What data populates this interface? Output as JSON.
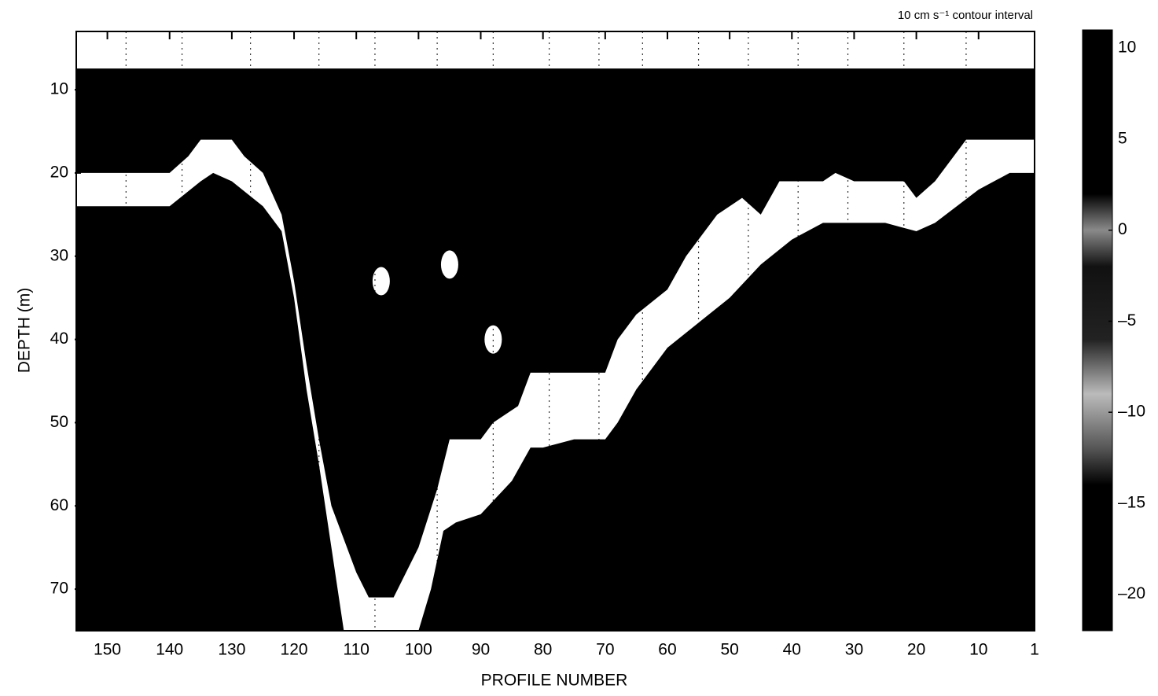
{
  "chart_data": {
    "type": "section",
    "annotation": "10 cm s⁻¹ contour interval",
    "xlabel": "PROFILE NUMBER",
    "ylabel": "DEPTH  (m)",
    "xlim": [
      155,
      1
    ],
    "xticks": [
      150,
      140,
      130,
      120,
      110,
      100,
      90,
      80,
      70,
      60,
      50,
      40,
      30,
      20,
      10,
      1
    ],
    "ylim": [
      75,
      3
    ],
    "yticks": [
      10,
      20,
      30,
      40,
      50,
      60,
      70
    ],
    "surface_depth": 7.5,
    "data_bottom": {
      "x": [
        155,
        140,
        137,
        135,
        130,
        128,
        125,
        122,
        120,
        118,
        116,
        114,
        110,
        108,
        104,
        100,
        97,
        95,
        90,
        88,
        84,
        82,
        70,
        68,
        65,
        60,
        57,
        55,
        52,
        48,
        45,
        42,
        35,
        33,
        30,
        22,
        20,
        17,
        15,
        12,
        1
      ],
      "values": [
        20,
        20,
        18,
        16,
        16,
        18,
        20,
        25,
        33,
        43,
        52,
        60,
        68,
        71,
        71,
        65,
        58,
        52,
        52,
        50,
        48,
        44,
        44,
        40,
        37,
        34,
        30,
        28,
        25,
        23,
        25,
        21,
        21,
        20,
        21,
        21,
        23,
        21,
        19,
        16,
        16
      ]
    },
    "seafloor": {
      "x": [
        155,
        140,
        135,
        133,
        130,
        125,
        122,
        120,
        118,
        116,
        114,
        112,
        100,
        98,
        96,
        94,
        90,
        85,
        82,
        80,
        75,
        70,
        68,
        65,
        62,
        60,
        55,
        50,
        45,
        40,
        35,
        30,
        25,
        20,
        17,
        10,
        5,
        1
      ],
      "values": [
        24,
        24,
        21,
        20,
        21,
        24,
        27,
        35,
        46,
        55,
        65,
        75,
        75,
        70,
        63,
        62,
        61,
        57,
        53,
        53,
        52,
        52,
        50,
        46,
        43,
        41,
        38,
        35,
        31,
        28,
        26,
        26,
        26,
        27,
        26,
        22,
        20,
        20
      ]
    },
    "stations": [
      147,
      138,
      127,
      116,
      107,
      97,
      88,
      79,
      71,
      64,
      55,
      47,
      39,
      31,
      22,
      12
    ],
    "patches": {
      "x": [
        106,
        95,
        88
      ],
      "values": [
        33,
        31,
        40
      ]
    },
    "clim": [
      -22,
      11
    ],
    "cticks": [
      10,
      5,
      0,
      {
        "value": -5,
        "label": "–5"
      },
      {
        "value": -10,
        "label": "–10"
      },
      {
        "value": -15,
        "label": "–15"
      },
      {
        "value": -20,
        "label": "–20"
      }
    ],
    "colormap": [
      {
        "value": 11,
        "color": "#000000"
      },
      {
        "value": 2,
        "color": "#000000"
      },
      {
        "value": 0,
        "color": "#8a8a8a"
      },
      {
        "value": -2,
        "color": "#111111"
      },
      {
        "value": -6,
        "color": "#222222"
      },
      {
        "value": -9,
        "color": "#bbbbbb"
      },
      {
        "value": -12,
        "color": "#555555"
      },
      {
        "value": -14,
        "color": "#000000"
      },
      {
        "value": -22,
        "color": "#000000"
      }
    ],
    "data_color": "#000000",
    "blank_color": "#ffffff"
  }
}
